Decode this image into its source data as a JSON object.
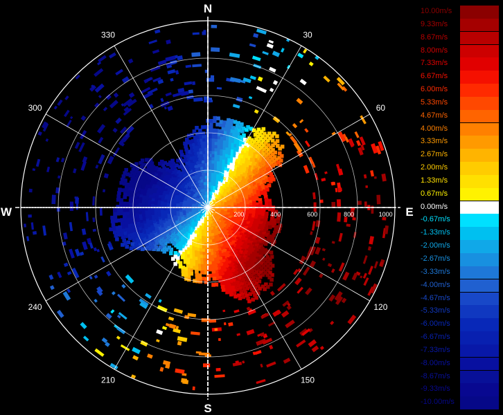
{
  "compass": {
    "north": "N",
    "east": "E",
    "south": "S",
    "west": "W"
  },
  "bearings": [
    {
      "deg": 30,
      "label": "30"
    },
    {
      "deg": 60,
      "label": "60"
    },
    {
      "deg": 120,
      "label": "120"
    },
    {
      "deg": 150,
      "label": "150"
    },
    {
      "deg": 210,
      "label": "210"
    },
    {
      "deg": 240,
      "label": "240"
    },
    {
      "deg": 300,
      "label": "300"
    },
    {
      "deg": 330,
      "label": "330"
    }
  ],
  "range_labels": [
    "200",
    "400",
    "600",
    "800",
    "1000"
  ],
  "velocity_scale": {
    "colors_positive": [
      "#8b0000",
      "#a50000",
      "#b90000",
      "#cd0000",
      "#e10000",
      "#f51000",
      "#ff2a00",
      "#ff4800",
      "#ff6400",
      "#ff8000",
      "#ff9a00",
      "#ffb400",
      "#ffcc00",
      "#ffe000",
      "#fff200"
    ],
    "colors_negative": [
      "#00e0ff",
      "#00c0f0",
      "#10a8e8",
      "#1890e0",
      "#1e78d8",
      "#2060d0",
      "#1848c8",
      "#1038c0",
      "#0828b8",
      "#0820b0",
      "#0818a8",
      "#0810a0",
      "#081098",
      "#080890",
      "#060888"
    ],
    "zero_color": "#ffffff",
    "labels": [
      "10.00m/s",
      "9.33m/s",
      "8.67m/s",
      "8.00m/s",
      "7.33m/s",
      "6.67m/s",
      "6.00m/s",
      "5.33m/s",
      "4.67m/s",
      "4.00m/s",
      "3.33m/s",
      "2.67m/s",
      "2.00m/s",
      "1.33m/s",
      "0.67m/s",
      "0.00m/s",
      "-0.67m/s",
      "-1.33m/s",
      "-2.00m/s",
      "-2.67m/s",
      "-3.33m/s",
      "-4.00m/s",
      "-4.67m/s",
      "-5.33m/s",
      "-6.00m/s",
      "-6.67m/s",
      "-7.33m/s",
      "-8.00m/s",
      "-8.67m/s",
      "-9.33m/s",
      "-10.00m/s"
    ]
  }
}
